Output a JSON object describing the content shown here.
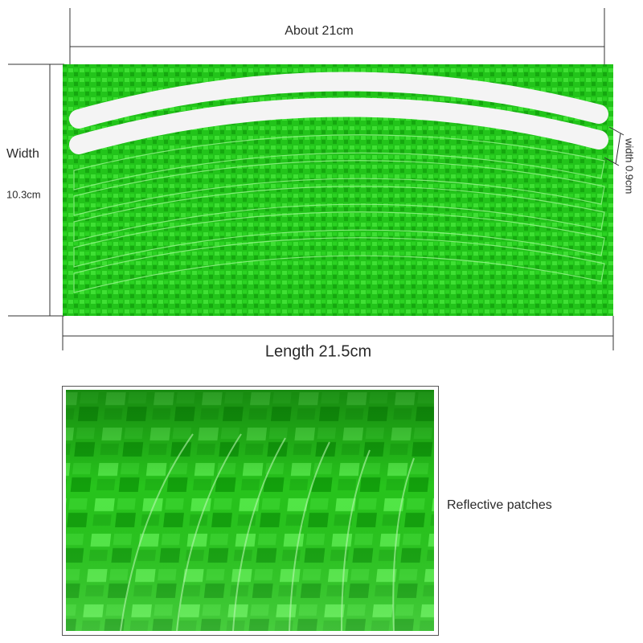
{
  "dimensions": {
    "top": "About 21cm",
    "width_label": "Width",
    "width_value": "10.3cm",
    "strip_width": "width 0.9cm",
    "length": "Length 21.5cm"
  },
  "detail": {
    "caption": "Reflective patches"
  }
}
